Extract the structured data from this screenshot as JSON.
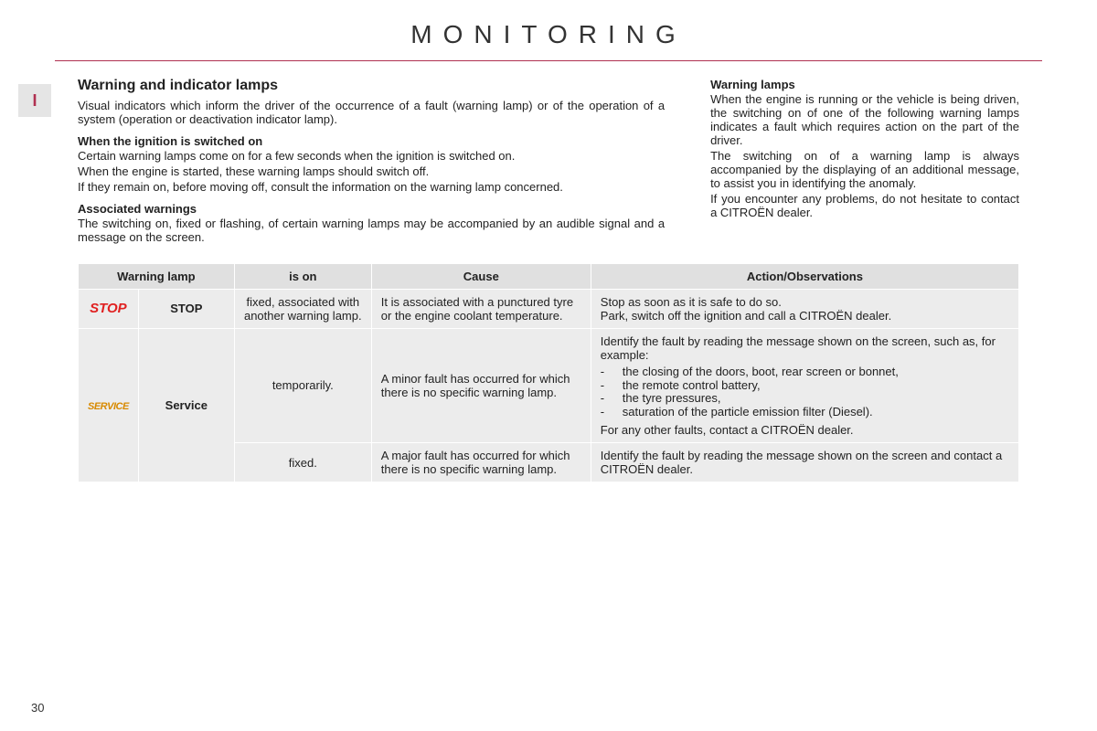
{
  "page": {
    "title": "MONITORING",
    "tab_label": "I",
    "page_number": "30"
  },
  "left": {
    "heading": "Warning and indicator lamps",
    "intro": "Visual indicators which inform the driver of the occurrence of a fault (warning lamp) or of the operation of a system (operation or deactivation indicator lamp).",
    "sub1_heading": "When the ignition is switched on",
    "sub1_p1": "Certain warning lamps come on for a few seconds when the ignition is switched on.",
    "sub1_p2": "When the engine is started, these warning lamps should switch off.",
    "sub1_p3": "If they remain on, before moving off, consult the information on the warning lamp concerned.",
    "sub2_heading": "Associated warnings",
    "sub2_p1": "The switching on, fixed or flashing, of certain warning lamps may be accompanied by an audible signal and a message on the screen."
  },
  "right": {
    "heading": "Warning lamps",
    "p1": "When the engine is running or the vehicle is being driven, the switching on of one of the following warning lamps indicates a fault which requires action on the part of the driver.",
    "p2": "The switching on of a warning lamp is always accompanied by the displaying of an additional message, to assist you in identifying the anomaly.",
    "p3": "If you encounter any problems, do not hesitate to contact a CITROËN dealer."
  },
  "table": {
    "headers": {
      "lamp": "Warning lamp",
      "ison": "is on",
      "cause": "Cause",
      "action": "Action/Observations"
    },
    "rows": [
      {
        "icon_text": "STOP",
        "icon_class": "stop-lamp",
        "lamp": "STOP",
        "ison": "fixed, associated with another warning lamp.",
        "cause": "It is associated with a punctured tyre or the engine coolant temperature.",
        "action_p1": "Stop as soon as it is safe to do so.",
        "action_p2": "Park, switch off the ignition and call a CITROËN dealer."
      },
      {
        "icon_text": "SERVICE",
        "icon_class": "service-lamp",
        "lamp": "Service",
        "ison": "temporarily.",
        "cause": "A minor fault has occurred for which there is no specific warning lamp.",
        "action_intro": "Identify the fault by reading the message shown on the screen, such as, for example:",
        "action_items": [
          "the closing of the doors, boot, rear screen or bonnet,",
          "the remote control battery,",
          "the tyre pressures,",
          "saturation of the particle emission filter (Diesel)."
        ],
        "action_outro": "For any other faults, contact a CITROËN dealer."
      },
      {
        "ison": "fixed.",
        "cause": "A major fault has occurred for which there is no specific warning lamp.",
        "action_p1": "Identify the fault by reading the message shown on the screen and contact a CITROËN dealer."
      }
    ]
  },
  "colors": {
    "rule": "#b03050",
    "stop": "#e02020",
    "service": "#d88a00",
    "cell_bg": "#ececec",
    "header_bg": "#e0e0e0"
  }
}
